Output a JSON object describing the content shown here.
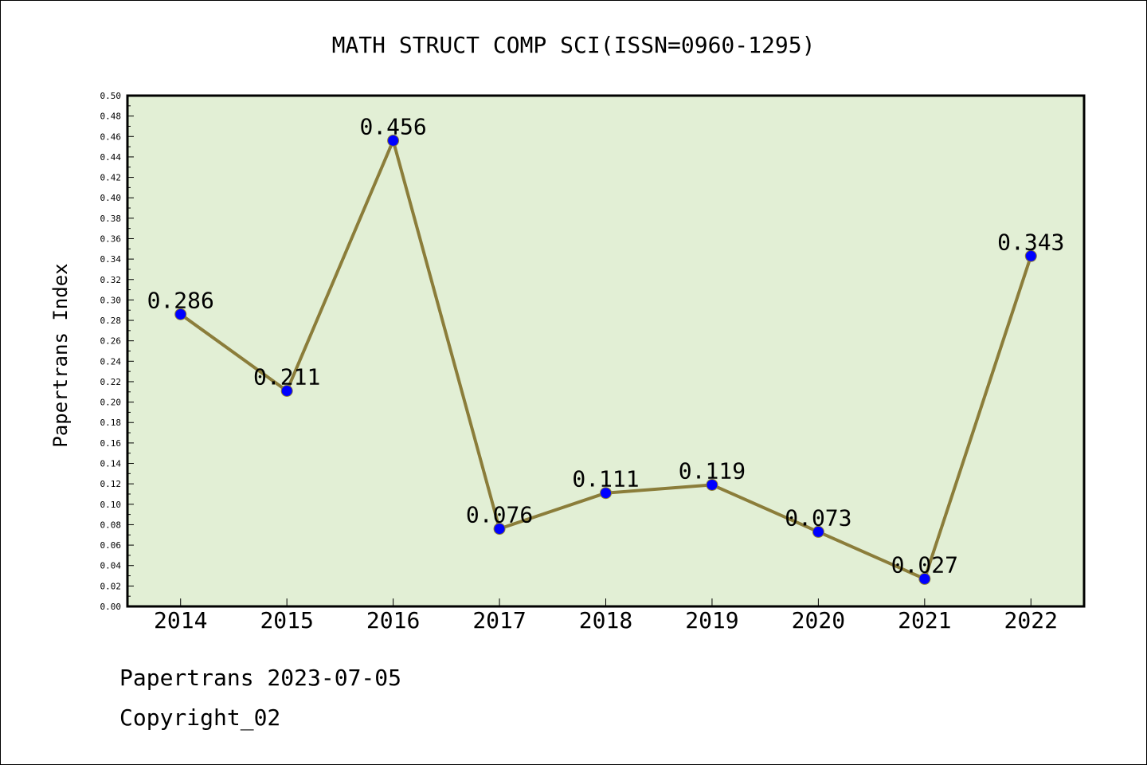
{
  "chart_data": {
    "type": "line",
    "title": "MATH STRUCT COMP SCI(ISSN=0960-1295)",
    "ylabel": "Papertrans Index",
    "xlabel": "",
    "categories": [
      "2014",
      "2015",
      "2016",
      "2017",
      "2018",
      "2019",
      "2020",
      "2021",
      "2022"
    ],
    "series": [
      {
        "values": [
          0.286,
          0.211,
          0.456,
          0.076,
          0.111,
          0.119,
          0.073,
          0.027,
          0.343
        ],
        "labels": [
          "0.286",
          "0.211",
          "0.456",
          "0.076",
          "0.111",
          "0.119",
          "0.073",
          "0.027",
          "0.343"
        ]
      }
    ],
    "ylim": [
      0,
      0.5
    ],
    "yticks": [
      "0.00",
      "0.02",
      "0.04",
      "0.06",
      "0.08",
      "0.10",
      "0.12",
      "0.14",
      "0.16",
      "0.18",
      "0.20",
      "0.22",
      "0.24",
      "0.26",
      "0.28",
      "0.30",
      "0.32",
      "0.34",
      "0.36",
      "0.38",
      "0.40",
      "0.42",
      "0.44",
      "0.46",
      "0.48",
      "0.50"
    ],
    "grid": false,
    "colors": {
      "plot_background": "#e2efd5",
      "line": "#8b7d3a",
      "marker": "#0000ff"
    }
  },
  "footer": {
    "line1": "Papertrans 2023-07-05",
    "line2": "Copyright_02"
  }
}
